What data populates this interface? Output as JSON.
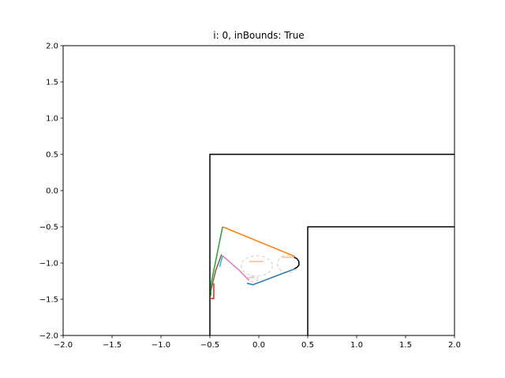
{
  "chart_data": {
    "type": "line",
    "title": "i: 0, inBounds: True",
    "xlabel": "",
    "ylabel": "",
    "xlim": [
      -2.0,
      2.0
    ],
    "ylim": [
      -2.0,
      2.0
    ],
    "x_ticks": [
      -2.0,
      -1.5,
      -1.0,
      -0.5,
      0.0,
      0.5,
      1.0,
      1.5,
      2.0
    ],
    "y_ticks": [
      -2.0,
      -1.5,
      -1.0,
      -0.5,
      0.0,
      0.5,
      1.0,
      1.5,
      2.0
    ],
    "x_tick_labels": [
      "−2.0",
      "−1.5",
      "−1.0",
      "−0.5",
      "0.0",
      "0.5",
      "1.0",
      "1.5",
      "2.0"
    ],
    "y_tick_labels": [
      "−2.0",
      "−1.5",
      "−1.0",
      "−0.5",
      "0.0",
      "0.5",
      "1.0",
      "1.5",
      "2.0"
    ],
    "grid": false,
    "legend": false,
    "series": [
      {
        "color": "#000000",
        "points": [
          [
            -0.5,
            -2.0
          ],
          [
            -0.5,
            0.5
          ],
          [
            2.0,
            0.5
          ]
        ]
      },
      {
        "color": "#000000",
        "points": [
          [
            0.5,
            -2.0
          ],
          [
            0.5,
            -0.5
          ],
          [
            2.0,
            -0.5
          ]
        ]
      },
      {
        "color": "#000000",
        "points": [
          [
            0.36,
            -0.92
          ],
          [
            0.39,
            -0.94
          ],
          [
            0.41,
            -0.98
          ],
          [
            0.41,
            -1.03
          ],
          [
            0.39,
            -1.06
          ],
          [
            0.36,
            -1.08
          ]
        ]
      },
      {
        "color": "#ff7f0e",
        "points": [
          [
            -0.37,
            -0.5
          ],
          [
            0.37,
            -0.91
          ]
        ]
      },
      {
        "color": "#2ca02c",
        "points": [
          [
            -0.37,
            -0.5
          ],
          [
            -0.49,
            -1.3
          ],
          [
            -0.49,
            -1.45
          ]
        ]
      },
      {
        "color": "#1f77b4",
        "points": [
          [
            0.37,
            -1.08
          ],
          [
            -0.06,
            -1.3
          ],
          [
            -0.12,
            -1.28
          ]
        ]
      },
      {
        "color": "#e377c2",
        "points": [
          [
            -0.37,
            -0.9
          ],
          [
            -0.2,
            -1.1
          ],
          [
            -0.1,
            -1.24
          ]
        ]
      },
      {
        "color": "#8c564b",
        "points": [
          [
            -0.38,
            -0.88
          ],
          [
            -0.44,
            -1.1
          ],
          [
            -0.49,
            -1.38
          ]
        ]
      },
      {
        "color": "#d62728",
        "points": [
          [
            -0.46,
            -1.28
          ],
          [
            -0.46,
            -1.49
          ],
          [
            -0.5,
            -1.49
          ]
        ]
      },
      {
        "color": "#17becf",
        "points": [
          [
            -0.37,
            -0.9
          ],
          [
            -0.4,
            -1.05
          ]
        ]
      }
    ],
    "ellipses": [
      {
        "cx": -0.02,
        "cy": -1.04,
        "rx": 0.16,
        "ry": 0.14,
        "color": "#cccccc",
        "style": "dashed"
      },
      {
        "cx": 0.3,
        "cy": -1.01,
        "rx": 0.11,
        "ry": 0.12,
        "color": "#cccccc",
        "style": "dashed"
      },
      {
        "cx": -0.06,
        "cy": -1.22,
        "rx": 0.05,
        "ry": 0.04,
        "color": "#cccccc",
        "style": "dashed"
      }
    ],
    "marks": [
      {
        "color": "#f5c9a8",
        "points": [
          [
            -0.09,
            -0.98
          ],
          [
            0.04,
            -0.98
          ]
        ]
      },
      {
        "color": "#f5c9a8",
        "points": [
          [
            0.25,
            -0.92
          ],
          [
            0.36,
            -0.92
          ]
        ]
      },
      {
        "color": "#f5c9a8",
        "points": [
          [
            -0.1,
            -1.2
          ],
          [
            -0.05,
            -1.2
          ]
        ]
      }
    ]
  }
}
